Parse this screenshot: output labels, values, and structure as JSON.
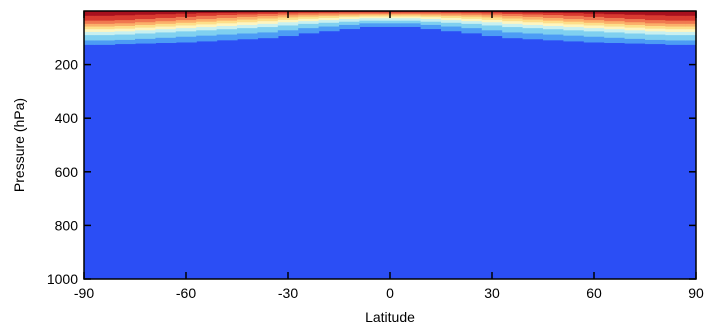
{
  "chart_data": {
    "type": "heatmap",
    "xlabel": "Latitude",
    "ylabel": "Pressure (hPa)",
    "xlim": [
      -90,
      90
    ],
    "ylim": [
      1000,
      0
    ],
    "y_inverted": true,
    "x_ticks": [
      -90,
      -60,
      -30,
      0,
      30,
      60,
      90
    ],
    "y_ticks": [
      200,
      400,
      600,
      800,
      1000
    ],
    "x_tick_labels": [
      "-90",
      "-60",
      "-30",
      "0",
      "30",
      "60",
      "90"
    ],
    "y_tick_labels": [
      "200",
      "400",
      "600",
      "800",
      "1000"
    ],
    "background_color": "#2b4ef5",
    "color_levels": [
      "#2b4ef5",
      "#4c9cf5",
      "#7fd0f0",
      "#c8f0f0",
      "#fdf5c0",
      "#fddf8a",
      "#fbb06a",
      "#f07850",
      "#d83a30",
      "#a8101e"
    ],
    "latitudes": [
      -90,
      -84,
      -78,
      -72,
      -66,
      -60,
      -54,
      -48,
      -42,
      -36,
      -30,
      -24,
      -18,
      -12,
      -6,
      0,
      6,
      12,
      18,
      24,
      30,
      36,
      42,
      48,
      54,
      60,
      66,
      72,
      78,
      84,
      90
    ],
    "level_boundaries_hPa": [
      [
        0,
        18,
        36,
        48,
        58,
        68,
        78,
        90,
        110,
        125,
        170
      ],
      [
        0,
        18,
        36,
        48,
        58,
        68,
        78,
        90,
        110,
        125,
        170
      ],
      [
        0,
        16,
        34,
        46,
        56,
        66,
        76,
        88,
        108,
        122,
        170
      ],
      [
        0,
        14,
        30,
        42,
        52,
        62,
        72,
        84,
        104,
        120,
        175
      ],
      [
        0,
        12,
        26,
        38,
        48,
        58,
        68,
        80,
        100,
        118,
        195
      ],
      [
        0,
        10,
        22,
        34,
        44,
        54,
        64,
        76,
        96,
        116,
        195
      ],
      [
        0,
        8,
        18,
        30,
        40,
        50,
        60,
        72,
        92,
        112,
        185
      ],
      [
        0,
        7,
        15,
        26,
        36,
        46,
        56,
        68,
        88,
        108,
        170
      ],
      [
        0,
        6,
        13,
        22,
        32,
        42,
        52,
        64,
        84,
        104,
        150
      ],
      [
        0,
        5,
        11,
        19,
        28,
        38,
        48,
        60,
        80,
        100,
        130
      ],
      [
        0,
        4,
        9,
        16,
        24,
        33,
        42,
        54,
        72,
        92,
        110
      ],
      [
        0,
        3,
        8,
        14,
        21,
        29,
        38,
        48,
        64,
        82,
        100
      ],
      [
        0,
        3,
        7,
        13,
        19,
        26,
        34,
        44,
        58,
        74,
        95
      ],
      [
        0,
        3,
        6,
        12,
        17,
        23,
        30,
        40,
        52,
        66,
        90
      ],
      [
        0,
        3,
        6,
        11,
        16,
        21,
        27,
        36,
        46,
        58,
        85
      ],
      [
        0,
        3,
        6,
        11,
        16,
        21,
        27,
        36,
        46,
        58,
        80
      ],
      [
        0,
        3,
        6,
        11,
        16,
        21,
        27,
        36,
        46,
        58,
        80
      ],
      [
        0,
        3,
        6,
        12,
        17,
        23,
        30,
        40,
        52,
        66,
        85
      ],
      [
        0,
        3,
        7,
        13,
        19,
        26,
        34,
        44,
        58,
        74,
        95
      ],
      [
        0,
        3,
        8,
        14,
        21,
        29,
        38,
        48,
        64,
        82,
        100
      ],
      [
        0,
        4,
        9,
        16,
        24,
        33,
        42,
        54,
        72,
        92,
        110
      ],
      [
        0,
        5,
        11,
        19,
        28,
        38,
        48,
        60,
        80,
        100,
        130
      ],
      [
        0,
        6,
        13,
        22,
        32,
        42,
        52,
        64,
        84,
        104,
        150
      ],
      [
        0,
        7,
        15,
        26,
        36,
        46,
        56,
        68,
        88,
        108,
        165
      ],
      [
        0,
        8,
        18,
        30,
        40,
        50,
        60,
        72,
        92,
        112,
        175
      ],
      [
        0,
        10,
        22,
        34,
        44,
        54,
        64,
        76,
        96,
        116,
        185
      ],
      [
        0,
        12,
        26,
        38,
        48,
        58,
        68,
        80,
        100,
        118,
        190
      ],
      [
        0,
        14,
        30,
        42,
        52,
        62,
        72,
        84,
        104,
        120,
        195
      ],
      [
        0,
        16,
        34,
        46,
        56,
        66,
        76,
        88,
        108,
        122,
        200
      ],
      [
        0,
        18,
        36,
        48,
        58,
        68,
        78,
        90,
        110,
        125,
        205
      ],
      [
        0,
        18,
        36,
        48,
        58,
        68,
        78,
        90,
        110,
        125,
        205
      ]
    ]
  }
}
